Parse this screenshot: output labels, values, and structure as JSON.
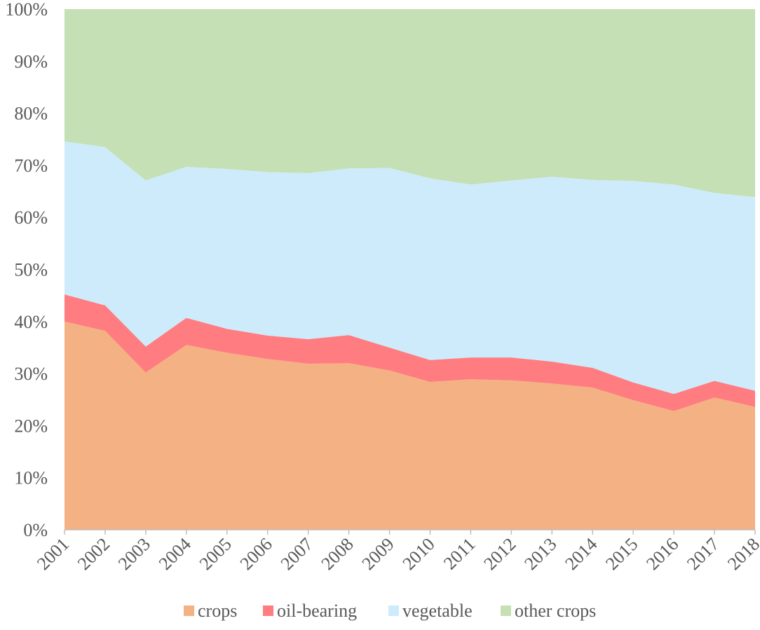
{
  "chart_data": {
    "type": "area",
    "stacked": true,
    "percent_stacked": true,
    "x": [
      "2001",
      "2002",
      "2003",
      "2004",
      "2005",
      "2006",
      "2007",
      "2008",
      "2009",
      "2010",
      "2011",
      "2012",
      "2013",
      "2014",
      "2015",
      "2016",
      "2017",
      "2018"
    ],
    "yticks": [
      "0%",
      "10%",
      "20%",
      "30%",
      "40%",
      "50%",
      "60%",
      "70%",
      "80%",
      "90%",
      "100%"
    ],
    "ylim": [
      0,
      100
    ],
    "grid": false,
    "legend_position": "bottom",
    "series": [
      {
        "name": "crops",
        "color": "#f4b183",
        "values": [
          40.0,
          38.2,
          30.2,
          35.5,
          34.0,
          32.8,
          31.9,
          32.0,
          30.6,
          28.4,
          28.9,
          28.7,
          28.1,
          27.3,
          24.9,
          22.8,
          25.4,
          23.6
        ]
      },
      {
        "name": "oil-bearing",
        "color": "#ff7c80",
        "values": [
          5.2,
          4.9,
          5.0,
          5.2,
          4.6,
          4.5,
          4.7,
          5.4,
          4.4,
          4.2,
          4.2,
          4.4,
          4.2,
          3.8,
          3.4,
          3.3,
          3.2,
          3.1
        ]
      },
      {
        "name": "vegetable",
        "color": "#cdebfb",
        "values": [
          29.4,
          30.4,
          31.9,
          29.0,
          30.7,
          31.4,
          31.9,
          32.0,
          34.5,
          34.9,
          33.2,
          34.0,
          35.5,
          36.1,
          38.7,
          40.2,
          36.1,
          37.2
        ]
      },
      {
        "name": "other crops",
        "color": "#c5e0b4",
        "values": [
          25.4,
          26.5,
          32.9,
          30.3,
          30.7,
          31.3,
          31.5,
          30.6,
          30.5,
          32.5,
          33.7,
          32.9,
          32.2,
          32.8,
          33.0,
          33.7,
          35.3,
          36.1
        ]
      }
    ]
  }
}
